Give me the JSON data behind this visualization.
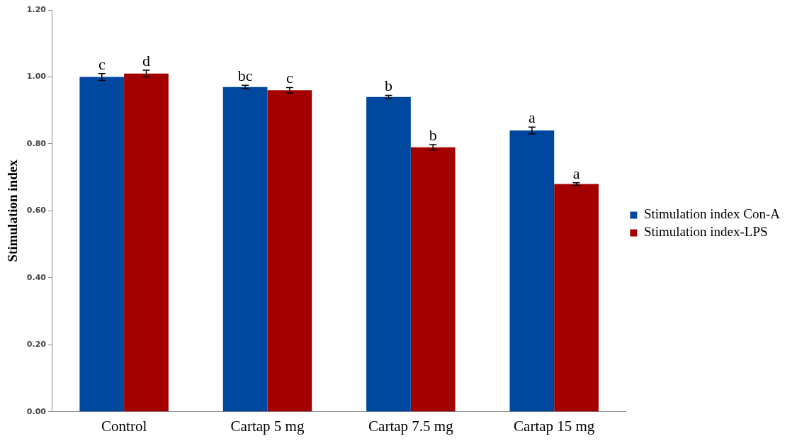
{
  "chart_data": {
    "type": "bar",
    "ylabel": "Stimulation index",
    "categories": [
      "Control",
      "Cartap 5 mg",
      "Cartap 7.5 mg",
      "Cartap 15 mg"
    ],
    "series": [
      {
        "name": "Stimulation index Con-A",
        "color": "#0047a0",
        "values": [
          1.0,
          0.97,
          0.94,
          0.84
        ],
        "errors": [
          0.01,
          0.005,
          0.005,
          0.01
        ]
      },
      {
        "name": "Stimulation index-LPS",
        "color": "#a30000",
        "values": [
          1.01,
          0.96,
          0.79,
          0.68
        ],
        "errors": [
          0.01,
          0.008,
          0.008,
          0.004
        ]
      }
    ],
    "annotations": [
      "c",
      "d",
      "bc",
      "c",
      "b",
      "b",
      "a",
      "a"
    ],
    "ylim": [
      0,
      1.2
    ],
    "yticks": [
      {
        "value": 0,
        "label": "0.00"
      },
      {
        "value": 0.2,
        "label": "0.20"
      },
      {
        "value": 0.4,
        "label": "0.40"
      },
      {
        "value": 0.6,
        "label": "0.60"
      },
      {
        "value": 0.8,
        "label": "0.80"
      },
      {
        "value": 1.0,
        "label": "1.00"
      },
      {
        "value": 1.2,
        "label": "1.20"
      }
    ],
    "grid": false,
    "legend": "right"
  }
}
